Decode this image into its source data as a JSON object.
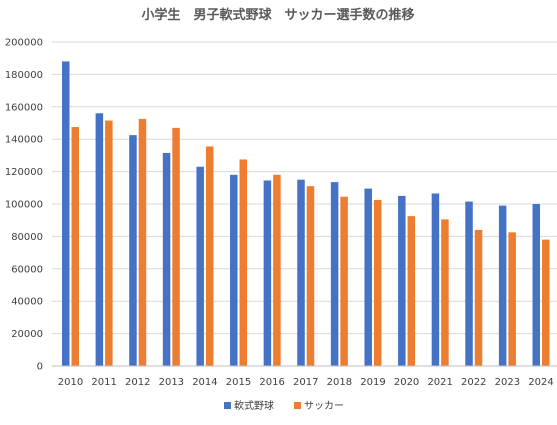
{
  "chart_data": {
    "type": "bar",
    "title": "小学生　男子軟式野球　サッカー選手数の推移",
    "xlabel": "",
    "ylabel": "",
    "ylim": [
      0,
      200000
    ],
    "yticks": [
      0,
      20000,
      40000,
      60000,
      80000,
      100000,
      120000,
      140000,
      160000,
      180000,
      200000
    ],
    "grid": true,
    "legend_position": "bottom",
    "categories": [
      "2010",
      "2011",
      "2012",
      "2013",
      "2014",
      "2015",
      "2016",
      "2017",
      "2018",
      "2019",
      "2020",
      "2021",
      "2022",
      "2023",
      "2024"
    ],
    "series": [
      {
        "name": "軟式野球",
        "color": "#4472c4",
        "values": [
          188000,
          156000,
          142500,
          131500,
          123000,
          118000,
          114500,
          115000,
          113500,
          109500,
          105000,
          106500,
          101500,
          99000,
          100000
        ]
      },
      {
        "name": "サッカー",
        "color": "#ed7d31",
        "values": [
          147500,
          151500,
          152500,
          147000,
          135500,
          127500,
          118000,
          111000,
          104500,
          102500,
          92500,
          90500,
          84000,
          82500,
          78000
        ]
      }
    ]
  }
}
